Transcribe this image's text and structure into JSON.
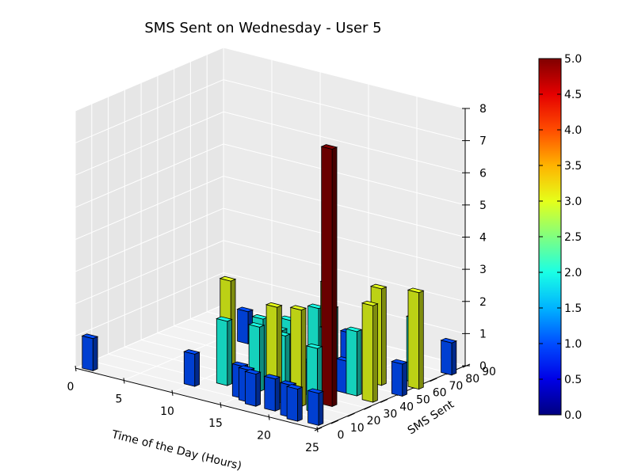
{
  "chart_data": {
    "type": "bar3d",
    "title": "SMS Sent on Wednesday - User 5",
    "xlabel": "Time of the Day (Hours)",
    "ylabel": "SMS Sent",
    "zlabel": "",
    "xlim": [
      0,
      25
    ],
    "ylim": [
      0,
      90
    ],
    "zlim": [
      0,
      8
    ],
    "x_ticks": [
      "0",
      "5",
      "10",
      "15",
      "20",
      "25"
    ],
    "y_ticks": [
      "0",
      "10",
      "20",
      "30",
      "40",
      "50",
      "60",
      "70",
      "80",
      "90"
    ],
    "z_ticks": [
      "0",
      "1",
      "2",
      "3",
      "4",
      "5",
      "6",
      "7",
      "8"
    ],
    "colorbar": {
      "colormap": "jet",
      "range": [
        0,
        5
      ],
      "ticks": [
        "0.0",
        "0.5",
        "1.0",
        "1.5",
        "2.0",
        "2.5",
        "3.0",
        "3.5",
        "4.0",
        "4.5",
        "5.0"
      ]
    },
    "bars": [
      {
        "x": 1,
        "y": 3,
        "z": 1
      },
      {
        "x": 7,
        "y": 62,
        "z": 1
      },
      {
        "x": 10,
        "y": 12,
        "z": 1
      },
      {
        "x": 11,
        "y": 28,
        "z": 3
      },
      {
        "x": 12,
        "y": 20,
        "z": 2
      },
      {
        "x": 14,
        "y": 30,
        "z": 2
      },
      {
        "x": 15,
        "y": 22,
        "z": 2
      },
      {
        "x": 15,
        "y": 12,
        "z": 1
      },
      {
        "x": 16,
        "y": 52,
        "z": 2
      },
      {
        "x": 16,
        "y": 35,
        "z": 2
      },
      {
        "x": 16,
        "y": 10,
        "z": 1
      },
      {
        "x": 17,
        "y": 24,
        "z": 2
      },
      {
        "x": 17,
        "y": 8,
        "z": 1
      },
      {
        "x": 17,
        "y": 66,
        "z": 1
      },
      {
        "x": 17,
        "y": 55,
        "z": 2
      },
      {
        "x": 18,
        "y": 15,
        "z": 3
      },
      {
        "x": 18,
        "y": 48,
        "z": 3
      },
      {
        "x": 18,
        "y": 20,
        "z": 2
      },
      {
        "x": 19,
        "y": 8,
        "z": 1
      },
      {
        "x": 19,
        "y": 30,
        "z": 1
      },
      {
        "x": 20,
        "y": 36,
        "z": 2
      },
      {
        "x": 20,
        "y": 18,
        "z": 3
      },
      {
        "x": 21,
        "y": 40,
        "z": 1
      },
      {
        "x": 21,
        "y": 6,
        "z": 1
      },
      {
        "x": 22,
        "y": 16,
        "z": 2
      },
      {
        "x": 22,
        "y": 4,
        "z": 1
      },
      {
        "x": 22,
        "y": 40,
        "z": 2
      },
      {
        "x": 22,
        "y": 25,
        "z": 8
      },
      {
        "x": 22,
        "y": 55,
        "z": 3
      },
      {
        "x": 24,
        "y": 5,
        "z": 1
      },
      {
        "x": 24,
        "y": 38,
        "z": 3
      },
      {
        "x": 25,
        "y": 50,
        "z": 1
      },
      {
        "x": 24,
        "y": 65,
        "z": 2
      },
      {
        "x": 25,
        "y": 60,
        "z": 3
      },
      {
        "x": 25,
        "y": 80,
        "z": 1
      }
    ]
  }
}
